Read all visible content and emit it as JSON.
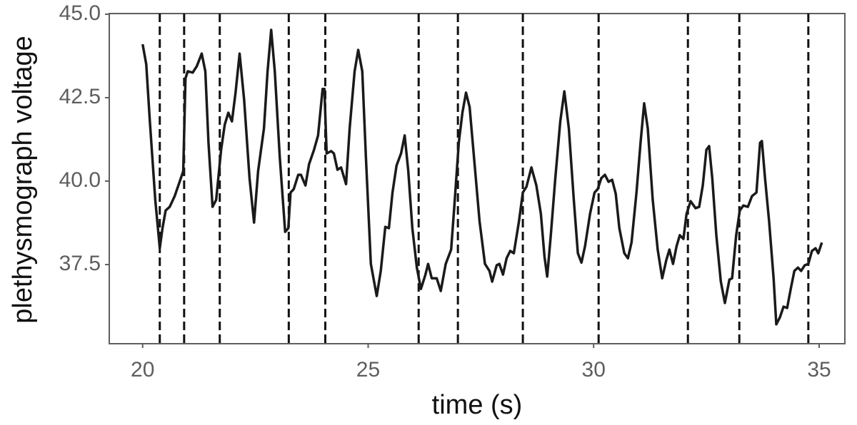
{
  "chart_data": {
    "type": "line",
    "xlabel": "time (s)",
    "ylabel": "plethysmograph voltage",
    "xlim": [
      19.26,
      35.57
    ],
    "ylim": [
      35.13,
      45.02
    ],
    "xticks": [
      20,
      25,
      30,
      35
    ],
    "yticks": [
      {
        "value": 45,
        "label": "45.0"
      },
      42.5,
      {
        "value": 40,
        "label": "40.0"
      },
      37.5
    ],
    "grid": false,
    "vertical_lines": {
      "color": "#111111",
      "style": "dashed",
      "x": [
        20.38,
        20.92,
        21.71,
        23.24,
        24.05,
        26.12,
        26.99,
        28.43,
        30.11,
        32.09,
        33.23,
        34.76
      ]
    },
    "x": [
      20.0,
      20.08,
      20.16,
      20.28,
      20.38,
      20.44,
      20.51,
      20.6,
      20.71,
      20.82,
      20.9,
      20.95,
      21.0,
      21.11,
      21.2,
      21.31,
      21.39,
      21.46,
      21.55,
      21.63,
      21.74,
      21.82,
      21.9,
      21.98,
      22.06,
      22.15,
      22.25,
      22.37,
      22.47,
      22.56,
      22.69,
      22.77,
      22.85,
      22.93,
      23.04,
      23.16,
      23.23,
      23.28,
      23.35,
      23.45,
      23.51,
      23.61,
      23.69,
      23.8,
      23.89,
      23.99,
      24.03,
      24.08,
      24.18,
      24.24,
      24.32,
      24.4,
      24.51,
      24.59,
      24.7,
      24.78,
      24.87,
      24.95,
      25.06,
      25.19,
      25.28,
      25.38,
      25.46,
      25.54,
      25.63,
      25.73,
      25.81,
      25.89,
      25.98,
      26.08,
      26.17,
      26.27,
      26.33,
      26.41,
      26.52,
      26.61,
      26.72,
      26.84,
      26.91,
      27.01,
      27.09,
      27.17,
      27.25,
      27.36,
      27.47,
      27.59,
      27.69,
      27.75,
      27.85,
      27.91,
      27.99,
      28.07,
      28.15,
      28.23,
      28.34,
      28.43,
      28.51,
      28.62,
      28.73,
      28.83,
      28.91,
      28.97,
      29.05,
      29.15,
      29.26,
      29.35,
      29.45,
      29.56,
      29.65,
      29.73,
      29.81,
      29.92,
      30.02,
      30.09,
      30.17,
      30.25,
      30.33,
      30.41,
      30.49,
      30.57,
      30.68,
      30.76,
      30.84,
      30.95,
      31.04,
      31.12,
      31.2,
      31.31,
      31.42,
      31.52,
      31.61,
      31.68,
      31.76,
      31.84,
      31.91,
      31.99,
      32.06,
      32.15,
      32.26,
      32.34,
      32.42,
      32.5,
      32.56,
      32.63,
      32.72,
      32.82,
      32.91,
      33.01,
      33.07,
      33.16,
      33.24,
      33.32,
      33.42,
      33.51,
      33.61,
      33.69,
      33.73,
      33.8,
      33.89,
      33.99,
      34.05,
      34.13,
      34.21,
      34.29,
      34.37,
      34.45,
      34.53,
      34.6,
      34.68,
      34.76,
      34.84,
      34.92,
      34.98,
      35.06
    ],
    "series": [
      {
        "color": "#1a1a1a",
        "values": [
          44.1,
          43.5,
          41.79,
          39.44,
          37.99,
          38.59,
          39.12,
          39.23,
          39.55,
          39.98,
          40.3,
          43.08,
          43.29,
          43.25,
          43.44,
          43.82,
          43.29,
          41.15,
          39.23,
          39.44,
          40.94,
          41.69,
          42.05,
          41.79,
          42.65,
          43.82,
          42.44,
          40.09,
          38.76,
          40.3,
          41.58,
          43.29,
          44.53,
          43.29,
          40.73,
          38.48,
          38.59,
          39.66,
          39.76,
          40.19,
          40.19,
          39.87,
          40.51,
          40.94,
          41.37,
          42.76,
          42.76,
          40.83,
          40.9,
          40.83,
          40.34,
          40.41,
          39.91,
          41.58,
          43.29,
          43.93,
          43.29,
          40.73,
          37.52,
          36.56,
          37.31,
          38.63,
          38.59,
          39.66,
          40.47,
          40.83,
          41.37,
          40.3,
          38.59,
          37.41,
          36.77,
          37.2,
          37.52,
          37.09,
          37.09,
          36.71,
          37.52,
          37.95,
          39.23,
          41.15,
          42.05,
          42.65,
          42.22,
          40.51,
          38.8,
          37.52,
          37.31,
          36.99,
          37.48,
          37.52,
          37.2,
          37.69,
          37.91,
          37.84,
          38.76,
          39.66,
          39.83,
          40.41,
          39.87,
          39.02,
          37.74,
          37.14,
          38.38,
          40.09,
          41.79,
          42.69,
          41.58,
          39.44,
          37.84,
          37.56,
          38.06,
          39.02,
          39.66,
          39.76,
          40.09,
          40.19,
          39.98,
          40.04,
          39.62,
          38.59,
          37.84,
          37.69,
          38.16,
          39.66,
          41.15,
          42.33,
          41.58,
          39.44,
          37.95,
          37.09,
          37.63,
          37.95,
          37.52,
          38.06,
          38.38,
          38.27,
          39.02,
          39.4,
          39.19,
          39.23,
          39.87,
          40.94,
          41.05,
          40.09,
          38.38,
          36.99,
          36.35,
          37.05,
          37.09,
          38.38,
          39.12,
          39.27,
          39.23,
          39.55,
          39.66,
          41.15,
          41.2,
          40.09,
          38.8,
          37.09,
          35.71,
          35.92,
          36.24,
          36.2,
          36.77,
          37.31,
          37.41,
          37.31,
          37.48,
          37.52,
          37.91,
          37.99,
          37.84,
          38.16
        ]
      }
    ]
  }
}
